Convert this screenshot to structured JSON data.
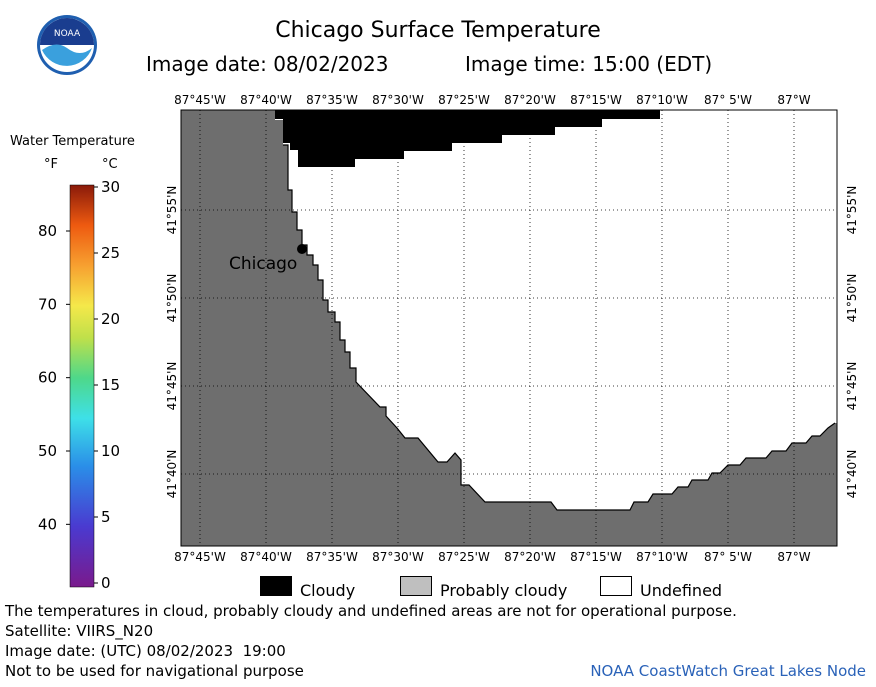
{
  "title": "Chicago Surface Temperature",
  "image_date": "Image date: 08/02/2023",
  "image_time": "Image time: 15:00 (EDT)",
  "logo_text": "NOAA",
  "colorbar": {
    "title": "Water Temperature",
    "unit_f": "°F",
    "unit_c": "°C",
    "f_ticks": [
      "40",
      "50",
      "60",
      "70",
      "80"
    ],
    "c_ticks": [
      "0",
      "5",
      "10",
      "15",
      "20",
      "25",
      "30"
    ],
    "f_tick_values": [
      40,
      50,
      60,
      70,
      80
    ],
    "c_tick_values": [
      0,
      5,
      10,
      15,
      20,
      25,
      30
    ],
    "c_range": [
      0,
      30
    ]
  },
  "map": {
    "lon_labels": [
      "87°45'W",
      "87°40'W",
      "87°35'W",
      "87°30'W",
      "87°25'W",
      "87°20'W",
      "87°15'W",
      "87°10'W",
      "87° 5'W",
      "87°W"
    ],
    "lat_labels": [
      "41°55'N",
      "41°50'N",
      "41°45'N",
      "41°40'N"
    ],
    "city": "Chicago",
    "land_color": "#6e6e6e",
    "cloud_color": "#000000",
    "undefined_color": "#ffffff"
  },
  "legend": {
    "cloudy": "Cloudy",
    "probably_cloudy": "Probably cloudy",
    "undefined": "Undefined"
  },
  "footer": {
    "disclaimer": "The temperatures in cloud, probably cloudy and undefined areas are not for operational purpose.",
    "satellite": "Satellite: VIIRS_N20",
    "utc_date": "Image date: (UTC) 08/02/2023  19:00",
    "navigation": "Not to be used for navigational purpose",
    "credit": "NOAA CoastWatch Great Lakes Node"
  }
}
